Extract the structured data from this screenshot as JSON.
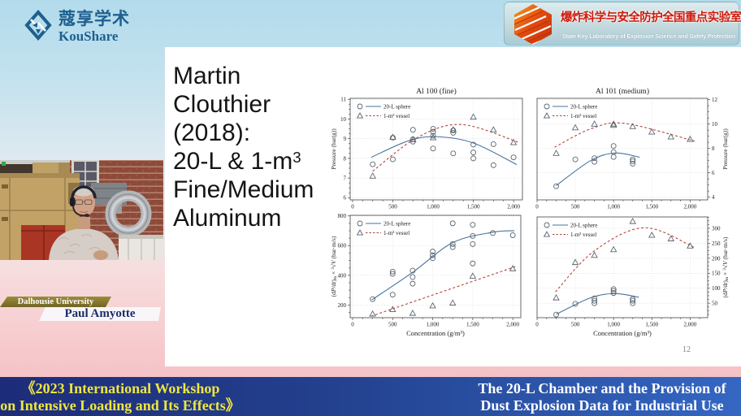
{
  "header": {
    "koushare": {
      "cn": "蔻享学术",
      "en": "KouShare"
    },
    "lab_badge": {
      "cn": "爆炸科学与安全防护全国重点实验室",
      "en": "State Key Laboratory of Explosion Science and Safety Protection"
    }
  },
  "speaker": {
    "affiliation": "Dalhousie University",
    "name": "Paul Amyotte"
  },
  "slide": {
    "title_lines": [
      "Martin",
      "Clouthier",
      "(2018):",
      {
        "t": "20-L & 1-m",
        "sup": "3"
      },
      "Fine/Medium",
      "Aluminum"
    ],
    "page_number": "12"
  },
  "footer": {
    "left": [
      "《2023 International Workshop",
      "on Intensive Loading and Its Effects》"
    ],
    "right": [
      "The 20-L Chamber and the Provision of",
      "Dust Explosion Data for Industrial Use"
    ]
  },
  "colors": {
    "sphere_line": "#46749e",
    "vessel_line": "#b2453c",
    "marker": "#5b6670"
  },
  "chart_data": [
    {
      "type": "scatter",
      "title": "Al 100 (fine)",
      "xlabel": "",
      "ylabel": "Pressure (bar(g))",
      "y_axis_side": "left",
      "xlim": [
        -30,
        2110
      ],
      "ylim": [
        5.89,
        11.05
      ],
      "xticks": [
        0,
        500,
        1000,
        1500,
        2000
      ],
      "xtick_labels": [
        "0",
        "500",
        "1,000",
        "1,500",
        "2,000"
      ],
      "yticks": [
        6,
        7,
        8,
        9,
        10,
        11
      ],
      "ytick_labels": [
        "6",
        "7",
        "8",
        "9",
        "10",
        "11"
      ],
      "series": [
        {
          "name": "20-L sphere",
          "marker": "circle",
          "line": "solid",
          "color": "#46749e",
          "points": [
            [
              250,
              7.7
            ],
            [
              500,
              7.95
            ],
            [
              500,
              9.05
            ],
            [
              750,
              8.85
            ],
            [
              750,
              8.97
            ],
            [
              750,
              9.45
            ],
            [
              1000,
              8.5
            ],
            [
              1000,
              9.15
            ],
            [
              1000,
              9.35
            ],
            [
              1000,
              9.5
            ],
            [
              1250,
              8.25
            ],
            [
              1250,
              9.3
            ],
            [
              1250,
              9.42
            ],
            [
              1500,
              8.0
            ],
            [
              1500,
              8.3
            ],
            [
              1500,
              8.7
            ],
            [
              1750,
              7.65
            ],
            [
              1750,
              8.72
            ],
            [
              2000,
              8.05
            ]
          ],
          "fit": [
            [
              230,
              8.05
            ],
            [
              700,
              8.9
            ],
            [
              1050,
              9.1
            ],
            [
              1500,
              8.78
            ],
            [
              2040,
              7.68
            ]
          ]
        },
        {
          "name": "1-m³ vessel",
          "marker": "triangle",
          "line": "dashed",
          "color": "#b2453c",
          "points": [
            [
              250,
              7.1
            ],
            [
              500,
              9.07
            ],
            [
              750,
              8.95
            ],
            [
              1000,
              9.05
            ],
            [
              1250,
              9.45
            ],
            [
              1500,
              10.1
            ],
            [
              1750,
              9.45
            ],
            [
              2000,
              8.8
            ]
          ],
          "fit": [
            [
              250,
              7.35
            ],
            [
              800,
              9.05
            ],
            [
              1350,
              9.72
            ],
            [
              2060,
              8.82
            ]
          ]
        }
      ]
    },
    {
      "type": "scatter",
      "title": "Al 101 (medium)",
      "xlabel": "",
      "ylabel": "Pressure (bar(g))",
      "y_axis_side": "right",
      "xlim": [
        0,
        2230
      ],
      "ylim": [
        3.78,
        12.11
      ],
      "xticks": [
        0,
        500,
        1000,
        1500,
        2000
      ],
      "xtick_labels": [
        "0",
        "500",
        "1,000",
        "1,500",
        "2,000"
      ],
      "yticks": [
        4,
        6,
        8,
        10,
        12
      ],
      "ytick_labels": [
        "4",
        "6",
        "8",
        "10",
        "12"
      ],
      "series": [
        {
          "name": "20-L sphere",
          "marker": "circle",
          "line": "solid",
          "color": "#46749e",
          "points": [
            [
              250,
              4.9
            ],
            [
              500,
              7.1
            ],
            [
              750,
              7.2
            ],
            [
              750,
              6.9
            ],
            [
              1000,
              8.2
            ],
            [
              1000,
              7.7
            ],
            [
              1000,
              7.3
            ],
            [
              1250,
              7.1
            ],
            [
              1250,
              6.95
            ],
            [
              1250,
              6.75
            ]
          ],
          "fit": [
            [
              250,
              4.95
            ],
            [
              700,
              7.0
            ],
            [
              1020,
              7.62
            ],
            [
              1340,
              7.28
            ]
          ]
        },
        {
          "name": "1-m³ vessel",
          "marker": "triangle",
          "line": "dashed",
          "color": "#b2453c",
          "points": [
            [
              250,
              7.6
            ],
            [
              500,
              9.7
            ],
            [
              750,
              10.0
            ],
            [
              1000,
              10.0
            ],
            [
              1000,
              9.9
            ],
            [
              1250,
              9.8
            ],
            [
              1500,
              9.35
            ],
            [
              1750,
              8.95
            ],
            [
              2000,
              8.75
            ]
          ],
          "fit": [
            [
              230,
              8.1
            ],
            [
              700,
              9.6
            ],
            [
              1150,
              10.05
            ],
            [
              2060,
              8.6
            ]
          ]
        }
      ]
    },
    {
      "type": "scatter",
      "title": "",
      "xlabel": "Concentration (g/m³)",
      "ylabel": "(dP/dt)m × ∛V (bar·m/s)",
      "ylabel_rich": [
        {
          "t": "(d"
        },
        {
          "t": "P",
          "i": 1
        },
        {
          "t": "/d"
        },
        {
          "t": "t",
          "i": 1
        },
        {
          "t": ")"
        },
        {
          "t": "m",
          "sub": 1
        },
        {
          "t": " × "
        },
        {
          "t": "3",
          "sup": 1
        },
        {
          "t": "√"
        },
        {
          "t": "V",
          "i": 1
        },
        {
          "t": " (bar·m/s)"
        }
      ],
      "y_axis_side": "left",
      "xlim": [
        -30,
        2100
      ],
      "ylim": [
        115,
        804
      ],
      "xticks": [
        0,
        500,
        1000,
        1500,
        2000
      ],
      "xtick_labels": [
        "0",
        "500",
        "1,000",
        "1,500",
        "2,000"
      ],
      "yticks": [
        200,
        400,
        600,
        800
      ],
      "ytick_labels": [
        "200",
        "400",
        "600",
        "800"
      ],
      "series": [
        {
          "name": "20-L sphere",
          "marker": "circle",
          "line": "solid",
          "color": "#46749e",
          "points": [
            [
              250,
              240
            ],
            [
              500,
              270
            ],
            [
              500,
              410
            ],
            [
              500,
              425
            ],
            [
              750,
              344
            ],
            [
              750,
              389
            ],
            [
              750,
              432
            ],
            [
              1000,
              515
            ],
            [
              1000,
              535
            ],
            [
              1000,
              560
            ],
            [
              1250,
              590
            ],
            [
              1250,
              610
            ],
            [
              1250,
              750
            ],
            [
              1500,
              480
            ],
            [
              1500,
              610
            ],
            [
              1500,
              665
            ],
            [
              1500,
              740
            ],
            [
              1750,
              685
            ],
            [
              2000,
              670
            ]
          ],
          "fit": [
            [
              240,
              235
            ],
            [
              750,
              420
            ],
            [
              1250,
              620
            ],
            [
              1750,
              690
            ],
            [
              2020,
              700
            ]
          ]
        },
        {
          "name": "1-m³ vessel",
          "marker": "triangle",
          "line": "dashed",
          "color": "#b2453c",
          "points": [
            [
              250,
              140
            ],
            [
              500,
              170
            ],
            [
              750,
              145
            ],
            [
              1000,
              195
            ],
            [
              1250,
              214
            ],
            [
              1500,
              395
            ],
            [
              2000,
              445
            ]
          ],
          "fit": [
            [
              230,
              125
            ],
            [
              2040,
              460
            ]
          ]
        }
      ]
    },
    {
      "type": "scatter",
      "title": "",
      "xlabel": "Concentration (g/m³)",
      "ylabel": "(dP/dt)m × ∛V (bar·m/s)",
      "ylabel_rich": [
        {
          "t": "(d"
        },
        {
          "t": "P",
          "i": 1
        },
        {
          "t": "/d"
        },
        {
          "t": "t",
          "i": 1
        },
        {
          "t": ")"
        },
        {
          "t": "m",
          "sub": 1
        },
        {
          "t": " × "
        },
        {
          "t": "3",
          "sup": 1
        },
        {
          "t": "√"
        },
        {
          "t": "V",
          "i": 1
        },
        {
          "t": " (bar·m/s)"
        }
      ],
      "y_axis_side": "right",
      "xlim": [
        0,
        2230
      ],
      "ylim": [
        1.6,
        338
      ],
      "xticks": [
        0,
        500,
        1000,
        1500,
        2000
      ],
      "xtick_labels": [
        "0",
        "500",
        "1,000",
        "1,500",
        "2,000"
      ],
      "yticks": [
        50,
        100,
        150,
        200,
        250,
        300
      ],
      "ytick_labels": [
        "50",
        "100",
        "150",
        "200",
        "250",
        "300"
      ],
      "series": [
        {
          "name": "20-L sphere",
          "marker": "circle",
          "line": "solid",
          "color": "#46749e",
          "points": [
            [
              250,
              12
            ],
            [
              500,
              48
            ],
            [
              750,
              50
            ],
            [
              750,
              58
            ],
            [
              750,
              66
            ],
            [
              1000,
              84
            ],
            [
              1000,
              91
            ],
            [
              1000,
              97
            ],
            [
              1250,
              50
            ],
            [
              1250,
              58
            ],
            [
              1250,
              64
            ]
          ],
          "fit": [
            [
              250,
              13
            ],
            [
              700,
              68
            ],
            [
              1020,
              82
            ],
            [
              1330,
              70
            ]
          ]
        },
        {
          "name": "1-m³ vessel",
          "marker": "triangle",
          "line": "dashed",
          "color": "#b2453c",
          "points": [
            [
              250,
              68
            ],
            [
              500,
              186
            ],
            [
              750,
              210
            ],
            [
              1000,
              229
            ],
            [
              1250,
              323
            ],
            [
              1500,
              277
            ],
            [
              1750,
              265
            ],
            [
              2000,
              241
            ]
          ],
          "fit": [
            [
              240,
              88
            ],
            [
              750,
              225
            ],
            [
              1400,
              302
            ],
            [
              2050,
              237
            ]
          ]
        }
      ]
    }
  ]
}
